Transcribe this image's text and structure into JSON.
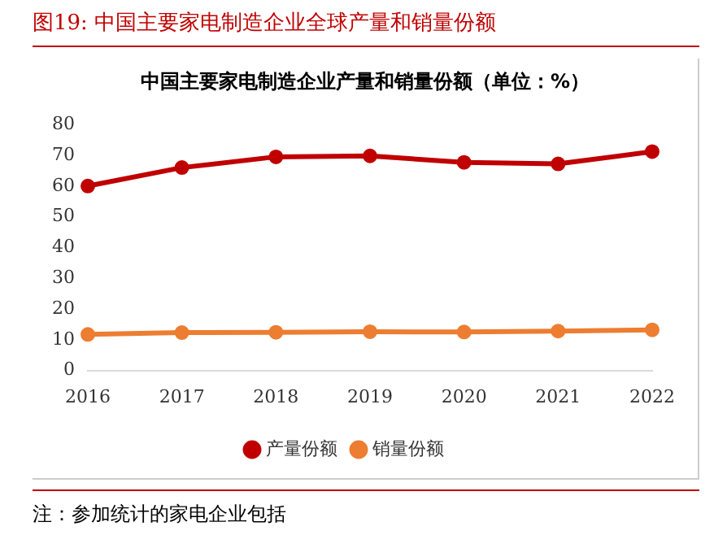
{
  "chart_data": {
    "type": "line",
    "subtitle": "图19:  中国主要家电制造企业全球产量和销量份额",
    "title": "中国主要家电制造企业产量和销量份额（单位：%）",
    "categories": [
      "2016",
      "2017",
      "2018",
      "2019",
      "2020",
      "2021",
      "2022"
    ],
    "series": [
      {
        "name": "产量份额",
        "color": "#c00000",
        "values": [
          60,
          66,
          69.5,
          69.8,
          67.7,
          67.2,
          71.2
        ]
      },
      {
        "name": "销量份额",
        "color": "#ed7d31",
        "values": [
          11.7,
          12.3,
          12.4,
          12.6,
          12.5,
          12.8,
          13.2
        ]
      }
    ],
    "ylim": [
      0,
      80
    ],
    "yticks": [
      0,
      10,
      20,
      30,
      40,
      50,
      60,
      70,
      80
    ],
    "grid": false,
    "legend": "bottom",
    "marker": "circle",
    "line_style": "solid",
    "annotations": [
      "注：参加统计的家电企业包括"
    ]
  }
}
